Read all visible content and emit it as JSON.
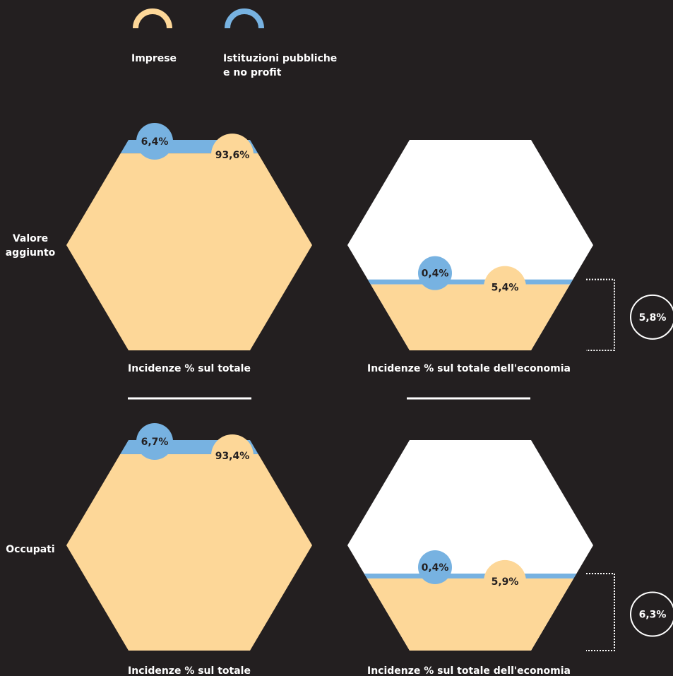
{
  "colors": {
    "background": "#231f20",
    "imprese": "#fdd798",
    "istituzioni": "#77b2e1",
    "empty": "#ffffff",
    "label_text": "#231f20",
    "text": "#ffffff"
  },
  "legend": [
    {
      "label": "Imprese",
      "color_key": "imprese"
    },
    {
      "label": "Istituzioni pubbliche\ne no profit",
      "color_key": "istituzioni"
    }
  ],
  "rows": [
    {
      "label": "Valore\naggiunto",
      "left": {
        "caption": "Incidenze % sul totale",
        "istituzioni": {
          "value": 6.4,
          "label": "6,4%"
        },
        "imprese": {
          "value": 93.6,
          "label": "93,6%"
        }
      },
      "right": {
        "caption": "Incidenze % sul totale dell'economia",
        "istituzioni": {
          "value": 0.4,
          "label": "0,4%"
        },
        "imprese": {
          "value": 5.4,
          "label": "5,4%"
        },
        "total": {
          "value": 5.8,
          "label": "5,8%"
        }
      }
    },
    {
      "label": "Occupati",
      "left": {
        "caption": "Incidenze % sul totale",
        "istituzioni": {
          "value": 6.7,
          "label": "6,7%"
        },
        "imprese": {
          "value": 93.4,
          "label": "93,4%"
        }
      },
      "right": {
        "caption": "Incidenze % sul totale dell'economia",
        "istituzioni": {
          "value": 0.4,
          "label": "0,4%"
        },
        "imprese": {
          "value": 5.9,
          "label": "5,9%"
        },
        "total": {
          "value": 6.3,
          "label": "6,3%"
        }
      }
    }
  ]
}
